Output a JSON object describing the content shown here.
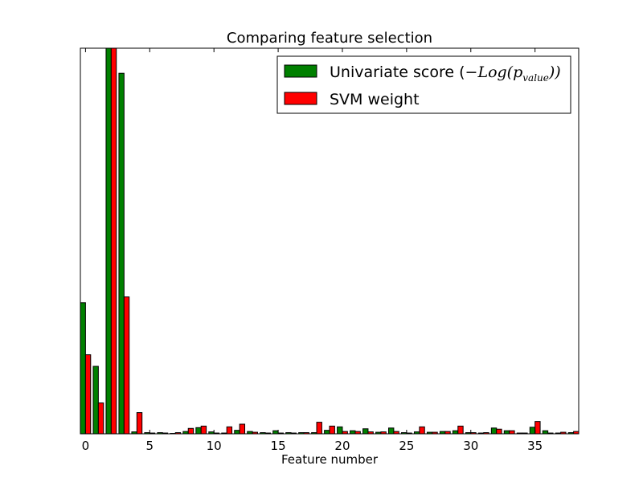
{
  "chart_data": {
    "type": "bar",
    "title": "Comparing feature selection",
    "xlabel": "Feature number",
    "ylabel": "",
    "xlim": [
      -0.4,
      38.4
    ],
    "ylim": [
      0,
      1
    ],
    "x_ticks": [
      0,
      5,
      10,
      15,
      20,
      25,
      30,
      35
    ],
    "x_tick_labels": [
      "0",
      "5",
      "10",
      "15",
      "20",
      "25",
      "30",
      "35"
    ],
    "y_tick_labels": [],
    "grid": false,
    "legend_position": "top-right",
    "categories": [
      0,
      1,
      2,
      3,
      4,
      5,
      6,
      7,
      8,
      9,
      10,
      11,
      12,
      13,
      14,
      15,
      16,
      17,
      18,
      19,
      20,
      21,
      22,
      23,
      24,
      25,
      26,
      27,
      28,
      29,
      30,
      31,
      32,
      33,
      34,
      35,
      36,
      37,
      38
    ],
    "series": [
      {
        "name": "Univariate score (-Log(p_value))",
        "legend_parts": [
          "Univariate score (",
          "−Log(p",
          "value",
          "))"
        ],
        "color": "#008000",
        "values": [
          0.34,
          0.175,
          1.0,
          0.935,
          0.005,
          0.003,
          0.003,
          0.001,
          0.006,
          0.016,
          0.005,
          0.002,
          0.009,
          0.006,
          0.003,
          0.008,
          0.003,
          0.003,
          0.003,
          0.009,
          0.018,
          0.008,
          0.013,
          0.004,
          0.015,
          0.003,
          0.005,
          0.004,
          0.006,
          0.008,
          0.003,
          0.002,
          0.015,
          0.008,
          0.002,
          0.017,
          0.008,
          0.002,
          0.003
        ]
      },
      {
        "name": "SVM weight",
        "legend_parts": [
          "SVM weight"
        ],
        "color": "#ff0000",
        "values": [
          0.205,
          0.08,
          1.0,
          0.355,
          0.055,
          0.002,
          0.002,
          0.003,
          0.014,
          0.02,
          0.002,
          0.018,
          0.025,
          0.004,
          0.002,
          0.002,
          0.002,
          0.003,
          0.03,
          0.02,
          0.006,
          0.006,
          0.005,
          0.005,
          0.006,
          0.002,
          0.018,
          0.004,
          0.006,
          0.02,
          0.003,
          0.003,
          0.012,
          0.008,
          0.002,
          0.032,
          0.002,
          0.004,
          0.006
        ]
      }
    ]
  }
}
